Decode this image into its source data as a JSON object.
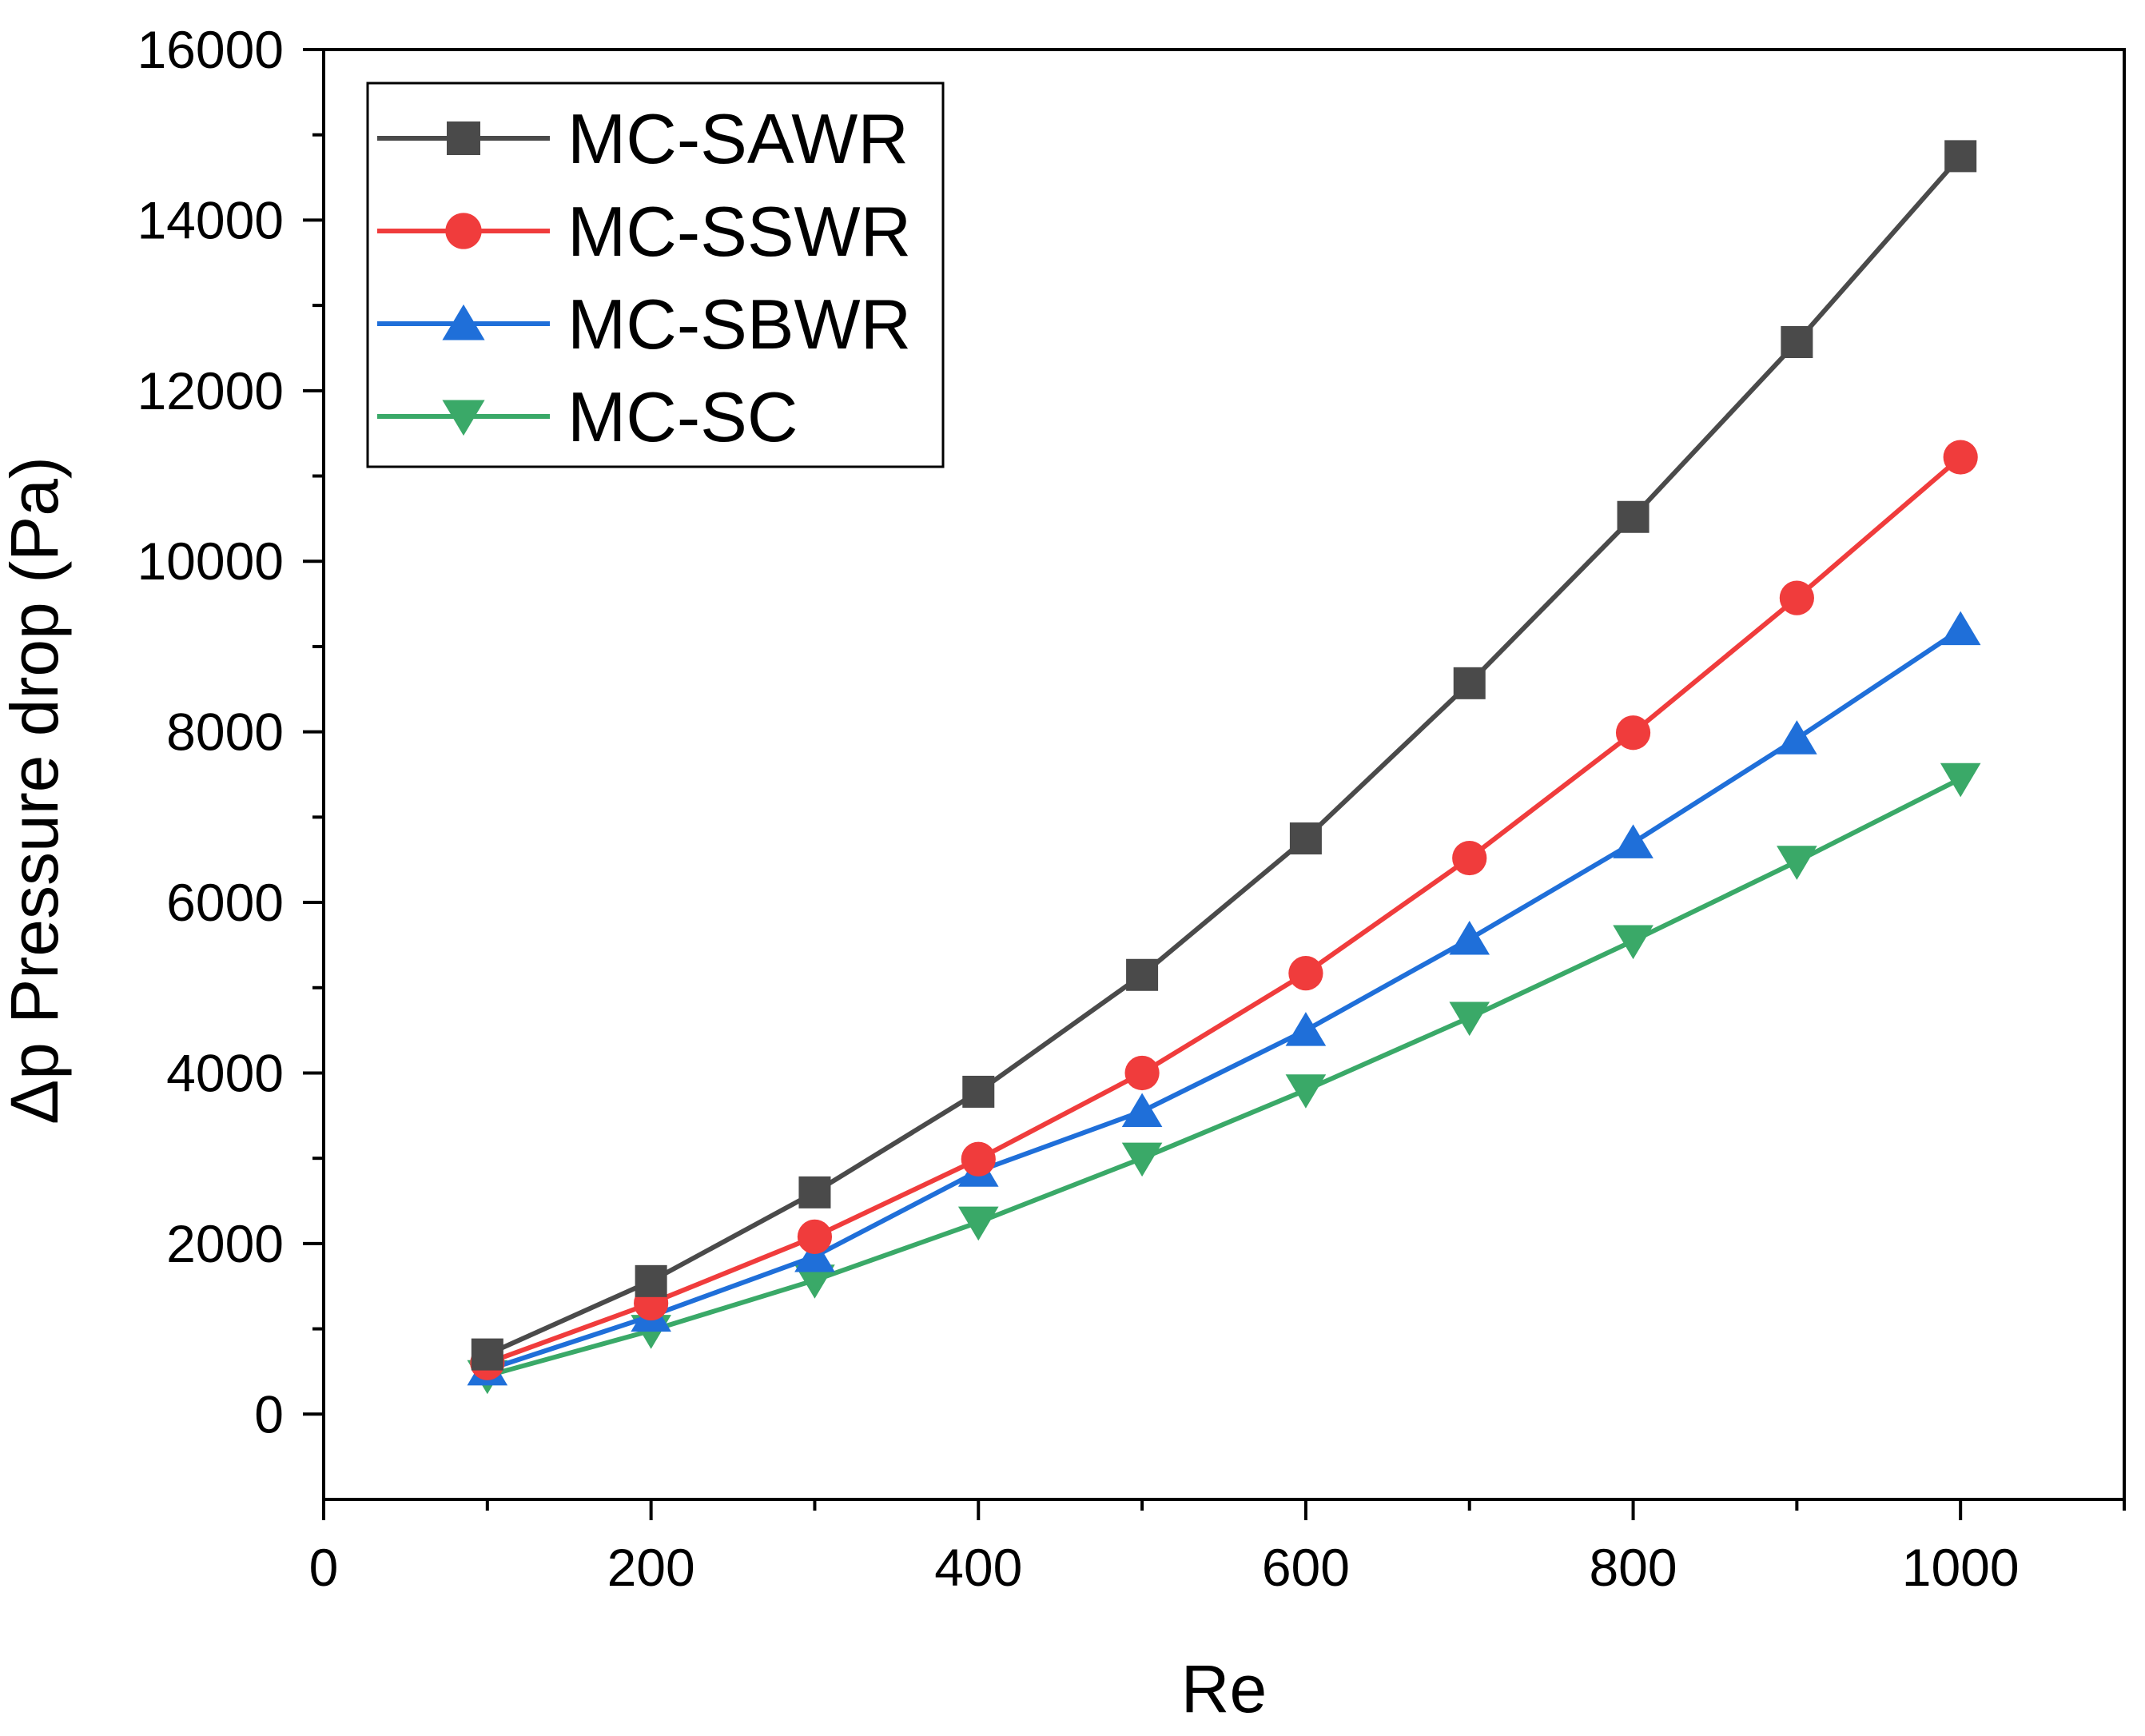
{
  "chart_data": {
    "type": "line",
    "title": "",
    "xlabel": "Re",
    "ylabel": "Δp Pressure drop (Pa)",
    "xlim": [
      0,
      1100
    ],
    "ylim": [
      -1000,
      16000
    ],
    "xticks": [
      0,
      200,
      400,
      600,
      800,
      1000
    ],
    "yticks": [
      0,
      2000,
      4000,
      6000,
      8000,
      10000,
      12000,
      14000,
      16000
    ],
    "x": [
      100,
      200,
      300,
      400,
      500,
      600,
      700,
      800,
      900,
      1000
    ],
    "grid": false,
    "legend_position": "top-left",
    "series": [
      {
        "name": "MC-SAWR",
        "color": "#4a4a4a",
        "marker": "square",
        "values": [
          700,
          1560,
          2600,
          3780,
          5150,
          6750,
          8570,
          10520,
          12570,
          14750
        ]
      },
      {
        "name": "MC-SSWR",
        "color": "#f03c3c",
        "marker": "circle",
        "values": [
          600,
          1300,
          2080,
          2990,
          4000,
          5170,
          6520,
          7990,
          9570,
          11220
        ]
      },
      {
        "name": "MC-SBWR",
        "color": "#1f6fd9",
        "marker": "triangle-up",
        "values": [
          520,
          1150,
          1850,
          2850,
          3550,
          4500,
          5570,
          6700,
          7920,
          9200
        ]
      },
      {
        "name": "MC-SC",
        "color": "#3aa968",
        "marker": "triangle-down",
        "values": [
          450,
          980,
          1570,
          2250,
          3000,
          3800,
          4650,
          5550,
          6480,
          7450
        ]
      }
    ]
  }
}
